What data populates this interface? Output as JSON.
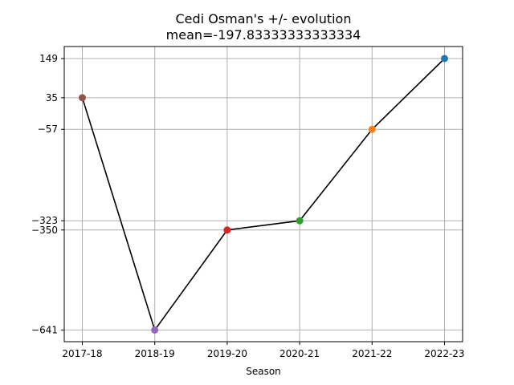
{
  "chart_data": {
    "type": "line",
    "title": "Cedi Osman's +/- evolution",
    "subtitle": "mean=-197.83333333333334",
    "xlabel": "Season",
    "ylabel": "",
    "categories": [
      "2017-18",
      "2018-19",
      "2019-20",
      "2020-21",
      "2021-22",
      "2022-23"
    ],
    "values": [
      35,
      -641,
      -350,
      -323,
      -57,
      149
    ],
    "point_colors": [
      "#8c564b",
      "#9467bd",
      "#d62728",
      "#2ca02c",
      "#ff7f0e",
      "#1f77b4"
    ],
    "line_color": "#000000",
    "y_ticks": [
      149,
      35,
      -57,
      -323,
      -350,
      -641
    ],
    "y_tick_labels": [
      "149",
      "35",
      "−57",
      "−323",
      "−350",
      "−641"
    ],
    "ylim": [
      -675,
      184
    ],
    "grid": true,
    "legend": "none"
  }
}
